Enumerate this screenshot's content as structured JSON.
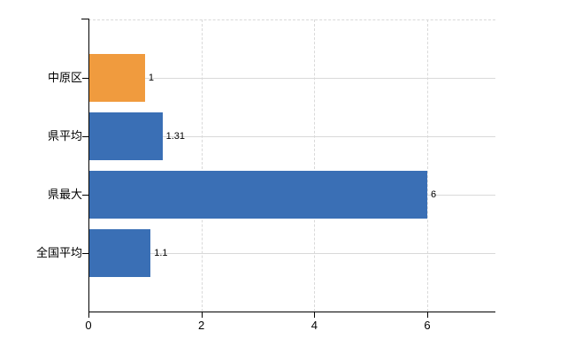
{
  "chart_data": {
    "type": "bar",
    "orientation": "horizontal",
    "title": "",
    "xlabel": "",
    "ylabel": "",
    "categories": [
      "中原区",
      "県平均",
      "県最大",
      "全国平均"
    ],
    "values": [
      1,
      1.31,
      6,
      1.1
    ],
    "value_labels": [
      "1",
      "1.31",
      "6",
      "1.1"
    ],
    "bar_colors": [
      "#F09B3E",
      "#3A6FB5",
      "#3A6FB5",
      "#3A6FB5"
    ],
    "x_ticks": [
      0,
      2,
      4,
      6
    ],
    "x_tick_labels": [
      "0",
      "2",
      "4",
      "6"
    ],
    "xlim": [
      0,
      7.2
    ],
    "grid": {
      "vertical": "dashed light gray at ticks 2,4,6",
      "horizontal": "solid light gray at each category center",
      "top_border": "dashed light gray"
    },
    "legend": false
  },
  "colors": {
    "bar_blue": "#3A6FB5",
    "bar_orange": "#F09B3E",
    "gridline": "#D9D9D9",
    "axis": "#000000",
    "text": "#000000",
    "background": "#FFFFFF"
  }
}
